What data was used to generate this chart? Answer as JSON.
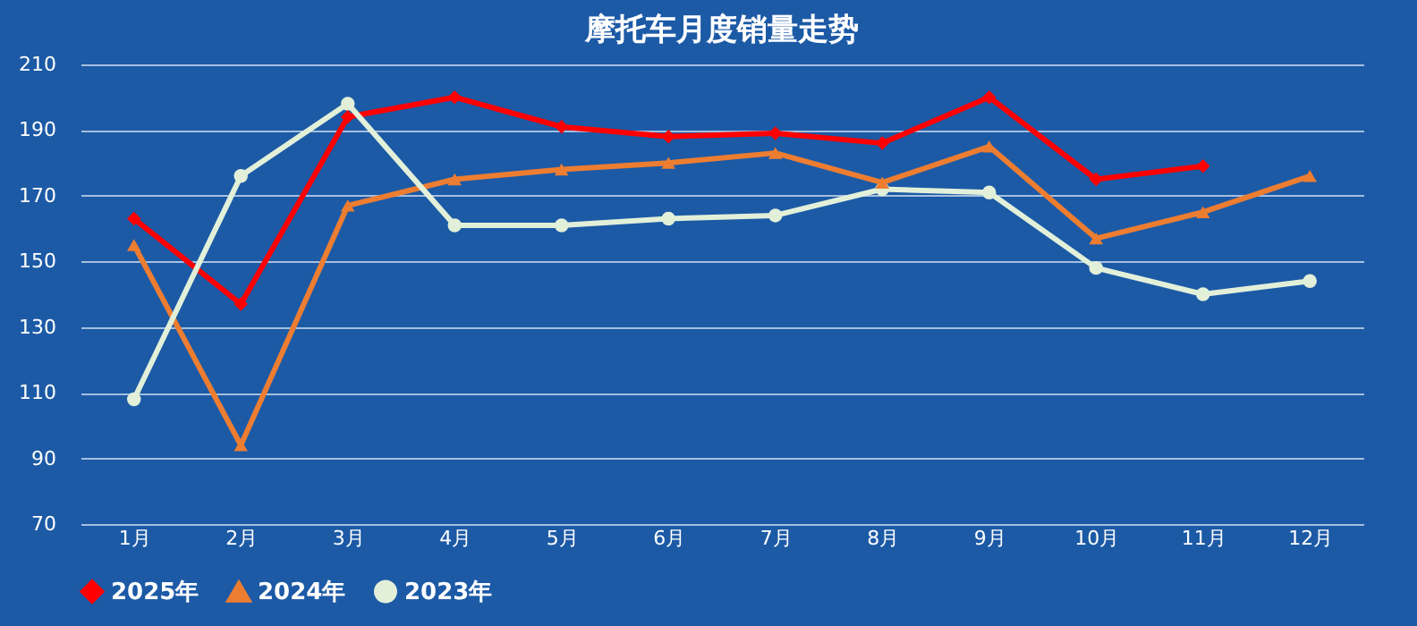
{
  "chart_data": {
    "type": "line",
    "title": "摩托车月度销量走势",
    "categories": [
      "1月",
      "2月",
      "3月",
      "4月",
      "5月",
      "6月",
      "7月",
      "8月",
      "9月",
      "10月",
      "11月",
      "12月"
    ],
    "series": [
      {
        "name": "2025年",
        "color": "#ff0000",
        "marker": "diamond",
        "values": [
          163,
          137,
          194,
          200,
          191,
          188,
          189,
          186,
          200,
          175,
          179,
          null
        ]
      },
      {
        "name": "2024年",
        "color": "#ed7d31",
        "marker": "triangle",
        "values": [
          155,
          94,
          167,
          175,
          178,
          180,
          183,
          174,
          185,
          157,
          165,
          176
        ]
      },
      {
        "name": "2023年",
        "color": "#e2f0d9",
        "marker": "circle",
        "values": [
          108,
          176,
          198,
          161,
          161,
          163,
          164,
          172,
          171,
          148,
          140,
          144
        ]
      }
    ],
    "ylim": [
      70,
      210
    ],
    "yticks": [
      70,
      90,
      110,
      130,
      150,
      170,
      190,
      210
    ],
    "grid": "y",
    "legend": "bottom",
    "line_style": "solid"
  }
}
